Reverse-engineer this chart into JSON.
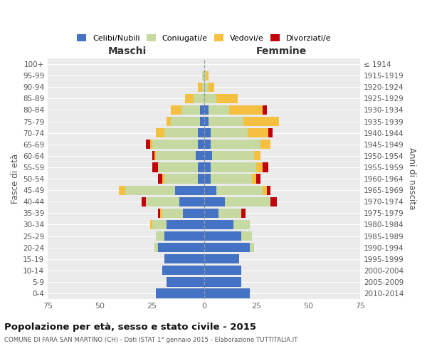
{
  "age_groups": [
    "0-4",
    "5-9",
    "10-14",
    "15-19",
    "20-24",
    "25-29",
    "30-34",
    "35-39",
    "40-44",
    "45-49",
    "50-54",
    "55-59",
    "60-64",
    "65-69",
    "70-74",
    "75-79",
    "80-84",
    "85-89",
    "90-94",
    "95-99",
    "100+"
  ],
  "birth_years": [
    "2010-2014",
    "2005-2009",
    "2000-2004",
    "1995-1999",
    "1990-1994",
    "1985-1989",
    "1980-1984",
    "1975-1979",
    "1970-1974",
    "1965-1969",
    "1960-1964",
    "1955-1959",
    "1950-1954",
    "1945-1949",
    "1940-1944",
    "1935-1939",
    "1930-1934",
    "1925-1929",
    "1920-1924",
    "1915-1919",
    "≤ 1914"
  ],
  "maschi": {
    "celibi": [
      23,
      18,
      20,
      19,
      22,
      19,
      18,
      10,
      12,
      14,
      3,
      3,
      4,
      3,
      3,
      2,
      2,
      0,
      0,
      0,
      0
    ],
    "coniugati": [
      0,
      0,
      0,
      0,
      2,
      4,
      7,
      10,
      16,
      24,
      16,
      19,
      19,
      22,
      16,
      14,
      9,
      5,
      1,
      1,
      0
    ],
    "vedovi": [
      0,
      0,
      0,
      0,
      0,
      0,
      1,
      1,
      0,
      3,
      1,
      0,
      1,
      1,
      4,
      2,
      5,
      4,
      2,
      0,
      0
    ],
    "divorziati": [
      0,
      0,
      0,
      0,
      0,
      0,
      0,
      1,
      2,
      0,
      2,
      3,
      1,
      2,
      0,
      0,
      0,
      0,
      0,
      0,
      0
    ]
  },
  "femmine": {
    "nubili": [
      22,
      18,
      18,
      17,
      22,
      18,
      14,
      7,
      10,
      6,
      3,
      3,
      4,
      3,
      3,
      2,
      2,
      0,
      0,
      0,
      0
    ],
    "coniugate": [
      0,
      0,
      0,
      0,
      2,
      5,
      8,
      11,
      22,
      22,
      20,
      22,
      20,
      24,
      18,
      17,
      10,
      6,
      2,
      1,
      0
    ],
    "vedove": [
      0,
      0,
      0,
      0,
      0,
      0,
      0,
      0,
      0,
      2,
      2,
      3,
      3,
      5,
      10,
      17,
      16,
      10,
      3,
      1,
      0
    ],
    "divorziate": [
      0,
      0,
      0,
      0,
      0,
      0,
      0,
      2,
      3,
      2,
      2,
      3,
      0,
      0,
      2,
      0,
      2,
      0,
      0,
      0,
      0
    ]
  },
  "colors": {
    "celibi": "#4472c4",
    "coniugati": "#c5d9a0",
    "vedovi": "#f5c040",
    "divorziati": "#c0000b"
  },
  "xlim": 75,
  "title": "Popolazione per età, sesso e stato civile - 2015",
  "subtitle": "COMUNE DI FARA SAN MARTINO (CH) - Dati ISTAT 1° gennaio 2015 - Elaborazione TUTTITALIA.IT",
  "ylabel_left": "Fasce di età",
  "ylabel_right": "Anni di nascita",
  "label_maschi": "Maschi",
  "label_femmine": "Femmine",
  "legend_labels": [
    "Celibi/Nubili",
    "Coniugati/e",
    "Vedovi/e",
    "Divorziati/e"
  ],
  "bg_color": "#ebebeb"
}
